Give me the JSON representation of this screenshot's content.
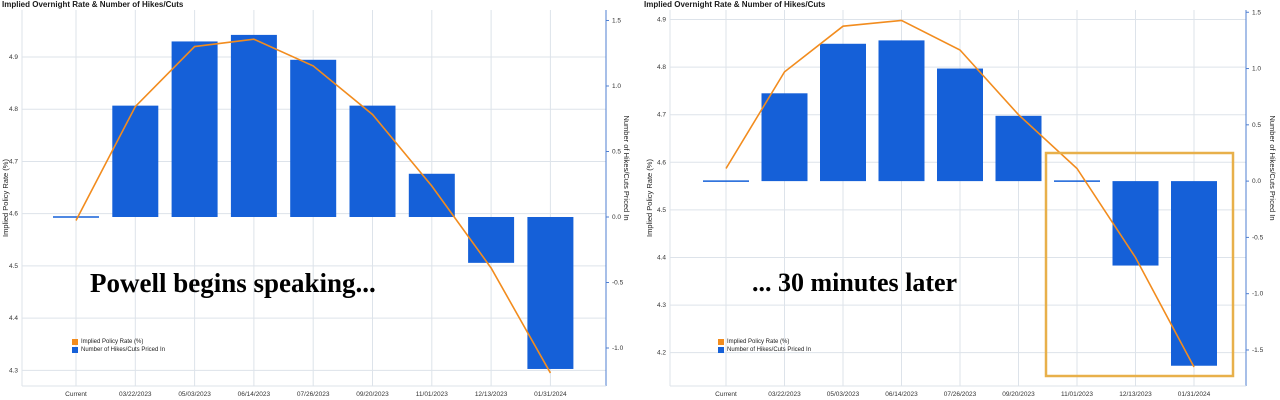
{
  "chart_data": [
    {
      "type": "bar",
      "title": "Implied Overnight Rate & Number of Hikes/Cuts",
      "overlay_text": "Powell begins speaking...",
      "categories": [
        "Current",
        "03/22/2023",
        "05/03/2023",
        "06/14/2023",
        "07/26/2023",
        "09/20/2023",
        "11/01/2023",
        "12/13/2023",
        "01/31/2024"
      ],
      "ylabel_left": "Implied Policy Rate (%)",
      "ylabel_right": "Number of Hikes/Cuts Priced In",
      "ylim_left": [
        4.27,
        4.99
      ],
      "ylim_right": [
        -1.29,
        1.58
      ],
      "yticks_left": [
        "4.3",
        "4.4",
        "4.5",
        "4.6",
        "4.7",
        "4.8",
        "4.9"
      ],
      "yticks_right": [
        "-1.0",
        "-0.5",
        "0.0",
        "0.5",
        "1.0",
        "1.5"
      ],
      "grid": true,
      "legend_position": "bottom-left",
      "colors": {
        "line": "#f28c1e",
        "bar": "#1560d8",
        "grid": "#dde3ea",
        "axis": "#4f7fd1"
      },
      "series": [
        {
          "name": "Implied Policy Rate (%)",
          "kind": "line",
          "axis": "left",
          "values": [
            4.587,
            4.805,
            4.92,
            4.934,
            4.883,
            4.79,
            4.653,
            4.496,
            4.295
          ]
        },
        {
          "name": "Number of Hikes/Cuts Priced In",
          "kind": "bar",
          "axis": "right",
          "values": [
            0.0,
            0.85,
            1.34,
            1.39,
            1.2,
            0.85,
            0.33,
            -0.35,
            -1.16
          ]
        }
      ]
    },
    {
      "type": "bar",
      "title": "Implied Overnight Rate & Number of Hikes/Cuts",
      "overlay_text": "... 30 minutes later",
      "categories": [
        "Current",
        "03/22/2023",
        "05/03/2023",
        "06/14/2023",
        "07/26/2023",
        "09/20/2023",
        "11/01/2023",
        "12/13/2023",
        "01/31/2024"
      ],
      "ylabel_left": "Implied Policy Rate (%)",
      "ylabel_right": "Number of Hikes/Cuts Priced In",
      "ylim_left": [
        4.13,
        4.92
      ],
      "ylim_right": [
        -1.82,
        1.52
      ],
      "yticks_left": [
        "4.2",
        "4.3",
        "4.4",
        "4.5",
        "4.6",
        "4.7",
        "4.8",
        "4.9"
      ],
      "yticks_right": [
        "-1.5",
        "-1.0",
        "-0.5",
        "0.0",
        "0.5",
        "1.0",
        "1.5"
      ],
      "grid": true,
      "legend_position": "bottom-left",
      "highlight_box": {
        "from_category": "11/01/2023",
        "to_category": "01/31/2024",
        "color": "#e8b04a"
      },
      "colors": {
        "line": "#f28c1e",
        "bar": "#1560d8",
        "grid": "#dde3ea",
        "axis": "#4f7fd1"
      },
      "series": [
        {
          "name": "Implied Policy Rate (%)",
          "kind": "line",
          "axis": "left",
          "values": [
            4.587,
            4.79,
            4.886,
            4.898,
            4.836,
            4.7,
            4.587,
            4.4,
            4.17
          ]
        },
        {
          "name": "Number of Hikes/Cuts Priced In",
          "kind": "bar",
          "axis": "right",
          "values": [
            0.0,
            0.78,
            1.22,
            1.25,
            1.0,
            0.58,
            -0.02,
            -0.75,
            -1.64
          ]
        }
      ]
    }
  ]
}
